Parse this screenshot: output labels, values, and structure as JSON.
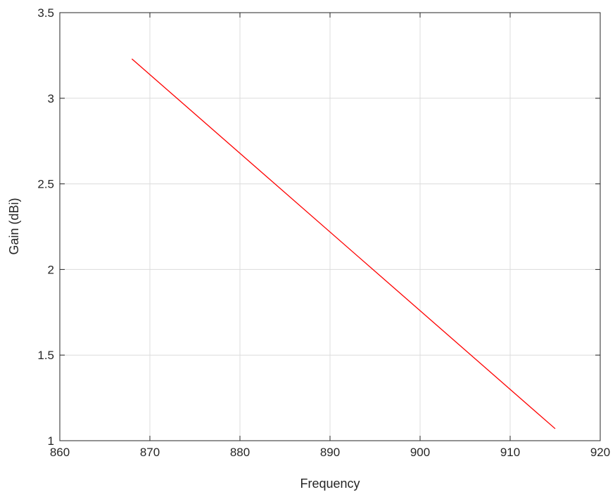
{
  "chart_data": {
    "type": "line",
    "title": "",
    "xlabel": "Frequency",
    "ylabel": "Gain (dBi)",
    "xlim": [
      860,
      920
    ],
    "ylim": [
      1,
      3.5
    ],
    "x_ticks": [
      860,
      870,
      880,
      890,
      900,
      910,
      920
    ],
    "y_ticks": [
      1,
      1.5,
      2,
      2.5,
      3,
      3.5
    ],
    "x_tick_labels": [
      "860",
      "870",
      "880",
      "890",
      "900",
      "910",
      "920"
    ],
    "y_tick_labels": [
      "1",
      "1.5",
      "2",
      "2.5",
      "3",
      "3.5"
    ],
    "grid": true,
    "legend": "none",
    "series": [
      {
        "color": "#ff0000",
        "x": [
          868,
          915
        ],
        "y": [
          3.23,
          1.07
        ]
      }
    ]
  }
}
